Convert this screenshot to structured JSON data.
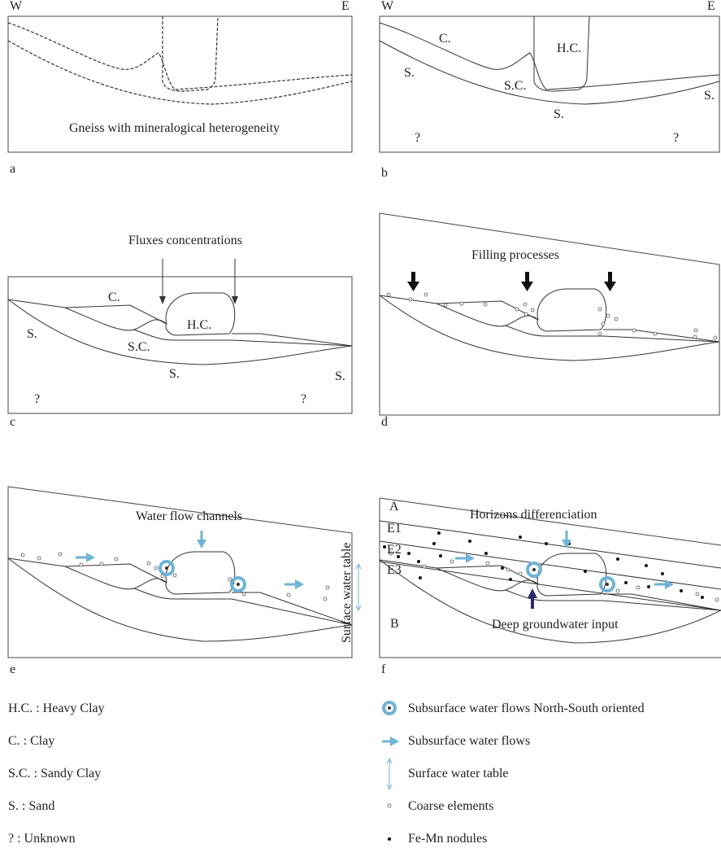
{
  "panels": [
    {
      "letter": "a",
      "texts": [
        "W",
        "E",
        "Gneiss with mineralogical heterogeneity"
      ]
    },
    {
      "letter": "b",
      "texts": [
        "W",
        "E",
        "C.",
        "H.C.",
        "S.",
        "S.C.",
        "S.",
        "S.",
        "?",
        "?"
      ]
    },
    {
      "letter": "c",
      "texts": [
        "Fluxes concentrations",
        "C.",
        "H.C.",
        "S.",
        "S.C.",
        "S.",
        "S.",
        "?",
        "?"
      ]
    },
    {
      "letter": "d",
      "texts": [
        "Filling processes"
      ]
    },
    {
      "letter": "e",
      "texts": [
        "Water flow channels",
        "Surface water table"
      ]
    },
    {
      "letter": "f",
      "texts": [
        "A",
        "E1",
        "E2",
        "E3",
        "Horizons differenciation",
        "B",
        "Deep groundwater input"
      ]
    }
  ],
  "legend_left": [
    "H.C. : Heavy Clay",
    "C. : Clay",
    "S.C. : Sandy Clay",
    "S. : Sand",
    "? : Unknown"
  ],
  "legend_right": [
    "Subsurface water flows North-South oriented",
    "Subsurface water flows",
    "Surface water table",
    "Coarse elements",
    "Fe-Mn nodules"
  ]
}
